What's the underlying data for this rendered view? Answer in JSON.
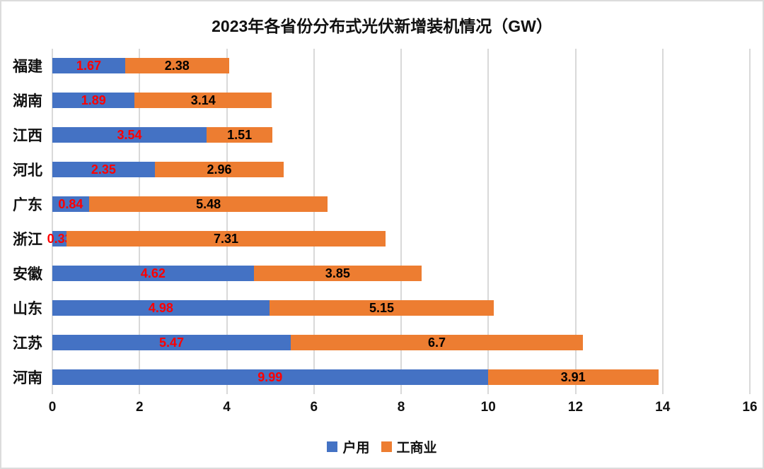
{
  "chart_data": {
    "type": "bar",
    "orientation": "horizontal",
    "stacked": true,
    "title": "2023年各省份分布式光伏新增装机情况（GW）",
    "categories": [
      "福建",
      "湖南",
      "江西",
      "河北",
      "广东",
      "浙江",
      "安徽",
      "山东",
      "江苏",
      "河南"
    ],
    "series": [
      {
        "name": "户用",
        "slug": "household",
        "color": "#4472c4",
        "label_color": "#ff0000",
        "values": [
          1.67,
          1.89,
          3.54,
          2.35,
          0.84,
          0.33,
          4.62,
          4.98,
          5.47,
          9.99
        ]
      },
      {
        "name": "工商业",
        "slug": "commercial-industrial",
        "color": "#ed7d31",
        "label_color": "#000000",
        "values": [
          2.38,
          3.14,
          1.51,
          2.96,
          5.48,
          7.31,
          3.85,
          5.15,
          6.7,
          3.91
        ]
      }
    ],
    "xlim": [
      0,
      16
    ],
    "x_ticks": [
      0,
      2,
      4,
      6,
      8,
      10,
      12,
      14,
      16
    ],
    "grid": true,
    "gridline_color": "#d9d9d9",
    "legend_position": "bottom"
  }
}
